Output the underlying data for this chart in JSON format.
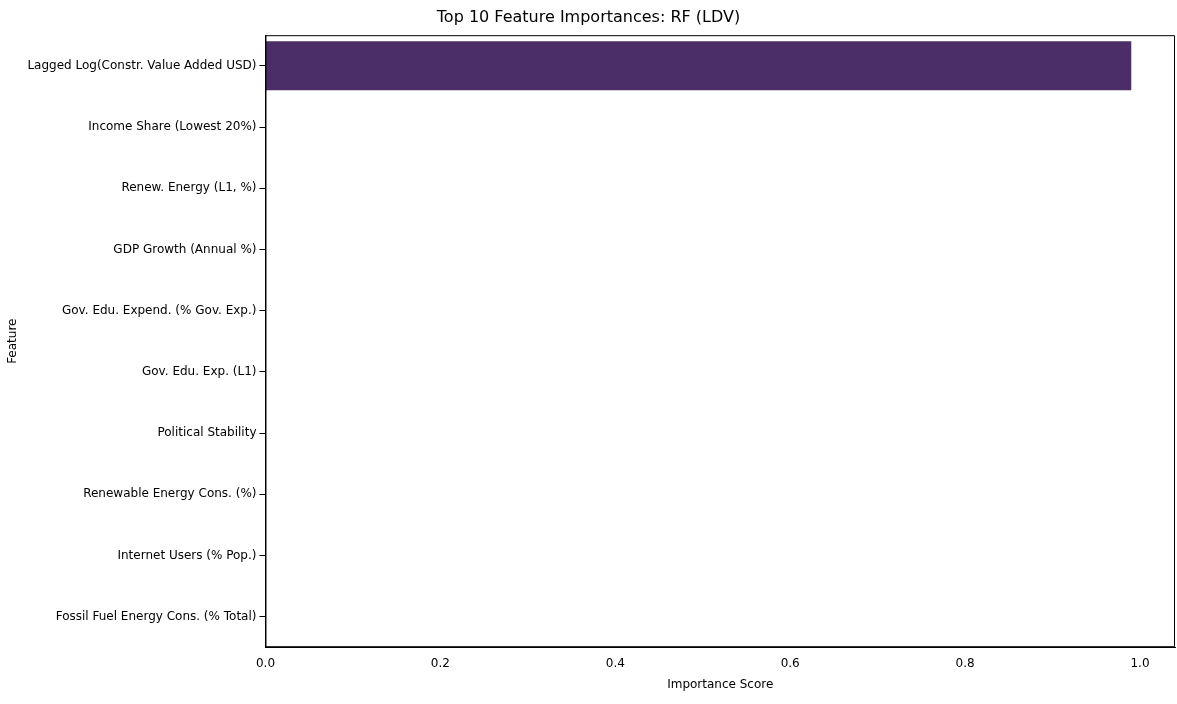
{
  "chart_data": {
    "type": "bar",
    "orientation": "horizontal",
    "title": "Top 10 Feature Importances: RF (LDV)",
    "xlabel": "Importance Score",
    "ylabel": "Feature",
    "categories": [
      "Lagged Log(Constr. Value Added USD)",
      "Income Share (Lowest 20%)",
      "Renew. Energy (L1, %)",
      "GDP Growth (Annual %)",
      "Gov. Edu. Expend. (% Gov. Exp.)",
      "Gov. Edu. Exp. (L1)",
      "Political Stability",
      "Renewable Energy Cons. (%)",
      "Internet Users (% Pop.)",
      "Fossil Fuel Energy Cons. (% Total)"
    ],
    "values": [
      0.99,
      0,
      0,
      0,
      0,
      0,
      0,
      0,
      0,
      0
    ],
    "color": "#4b2e67",
    "xlim": [
      0,
      1.04
    ],
    "xticks": [
      {
        "value": 0,
        "label": "0.0"
      },
      {
        "value": 0.2,
        "label": "0.2"
      },
      {
        "value": 0.4,
        "label": "0.4"
      },
      {
        "value": 0.6,
        "label": "0.6"
      },
      {
        "value": 0.8,
        "label": "0.8"
      },
      {
        "value": 1,
        "label": "1.0"
      }
    ],
    "grid": false,
    "legend": false
  }
}
